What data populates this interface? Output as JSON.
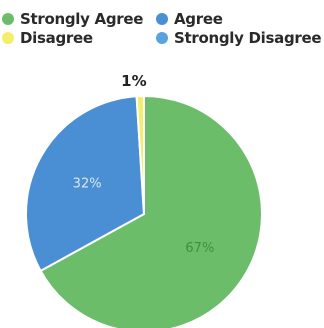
{
  "chart_data": {
    "type": "pie",
    "title": "",
    "legend_position": "top",
    "slices": [
      {
        "label": "Strongly Agree",
        "value": 67,
        "display": "67%",
        "color": "#6cbd6a"
      },
      {
        "label": "Agree",
        "value": 32,
        "display": "32%",
        "color": "#4a8fd4"
      },
      {
        "label": "Disagree",
        "value": 1,
        "display": "1%",
        "color": "#f4ef6a"
      },
      {
        "label": "Strongly Disagree",
        "value": 0,
        "display": "",
        "color": "#5aa1e0"
      }
    ]
  }
}
